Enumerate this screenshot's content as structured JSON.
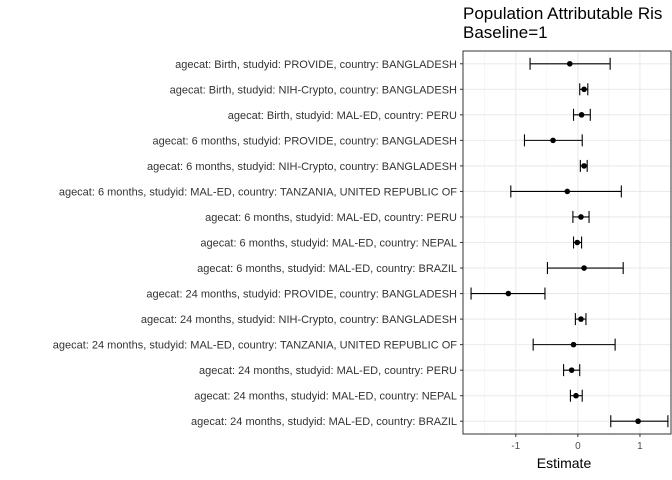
{
  "chart_data": {
    "type": "forest",
    "title": "Population Attributable Ris",
    "subtitle": "Baseline=1",
    "xlabel": "Estimate",
    "ylabel": "",
    "xlim": [
      -1.85,
      1.5
    ],
    "x_ticks": [
      -1,
      0,
      1
    ],
    "x_tick_labels": [
      "-1",
      "0",
      "1"
    ],
    "grid": true,
    "legend": "none",
    "rows": [
      {
        "label": "agecat: Birth, studyid: PROVIDE, country: BANGLADESH",
        "estimate": -0.13,
        "lower": -0.77,
        "upper": 0.52
      },
      {
        "label": "agecat: Birth, studyid: NIH-Crypto, country: BANGLADESH",
        "estimate": 0.1,
        "lower": 0.03,
        "upper": 0.16
      },
      {
        "label": "agecat: Birth, studyid: MAL-ED, country: PERU",
        "estimate": 0.06,
        "lower": -0.07,
        "upper": 0.2
      },
      {
        "label": "agecat: 6 months, studyid: PROVIDE, country: BANGLADESH",
        "estimate": -0.4,
        "lower": -0.86,
        "upper": 0.07
      },
      {
        "label": "agecat: 6 months, studyid: NIH-Crypto, country: BANGLADESH",
        "estimate": 0.1,
        "lower": 0.04,
        "upper": 0.15
      },
      {
        "label": "agecat: 6 months, studyid: MAL-ED, country: TANZANIA, UNITED REPUBLIC OF",
        "estimate": -0.17,
        "lower": -1.08,
        "upper": 0.7
      },
      {
        "label": "agecat: 6 months, studyid: MAL-ED, country: PERU",
        "estimate": 0.05,
        "lower": -0.08,
        "upper": 0.18
      },
      {
        "label": "agecat: 6 months, studyid: MAL-ED, country: NEPAL",
        "estimate": -0.01,
        "lower": -0.07,
        "upper": 0.06
      },
      {
        "label": "agecat: 6 months, studyid: MAL-ED, country: BRAZIL",
        "estimate": 0.1,
        "lower": -0.49,
        "upper": 0.73
      },
      {
        "label": "agecat: 24 months, studyid: PROVIDE, country: BANGLADESH",
        "estimate": -1.12,
        "lower": -1.72,
        "upper": -0.53
      },
      {
        "label": "agecat: 24 months, studyid: NIH-Crypto, country: BANGLADESH",
        "estimate": 0.05,
        "lower": -0.04,
        "upper": 0.13
      },
      {
        "label": "agecat: 24 months, studyid: MAL-ED, country: TANZANIA, UNITED REPUBLIC OF",
        "estimate": -0.07,
        "lower": -0.72,
        "upper": 0.6
      },
      {
        "label": "agecat: 24 months, studyid: MAL-ED, country: PERU",
        "estimate": -0.1,
        "lower": -0.23,
        "upper": 0.03
      },
      {
        "label": "agecat: 24 months, studyid: MAL-ED, country: NEPAL",
        "estimate": -0.03,
        "lower": -0.12,
        "upper": 0.07
      },
      {
        "label": "agecat: 24 months, studyid: MAL-ED, country: BRAZIL",
        "estimate": 0.97,
        "lower": 0.53,
        "upper": 1.45
      }
    ]
  }
}
